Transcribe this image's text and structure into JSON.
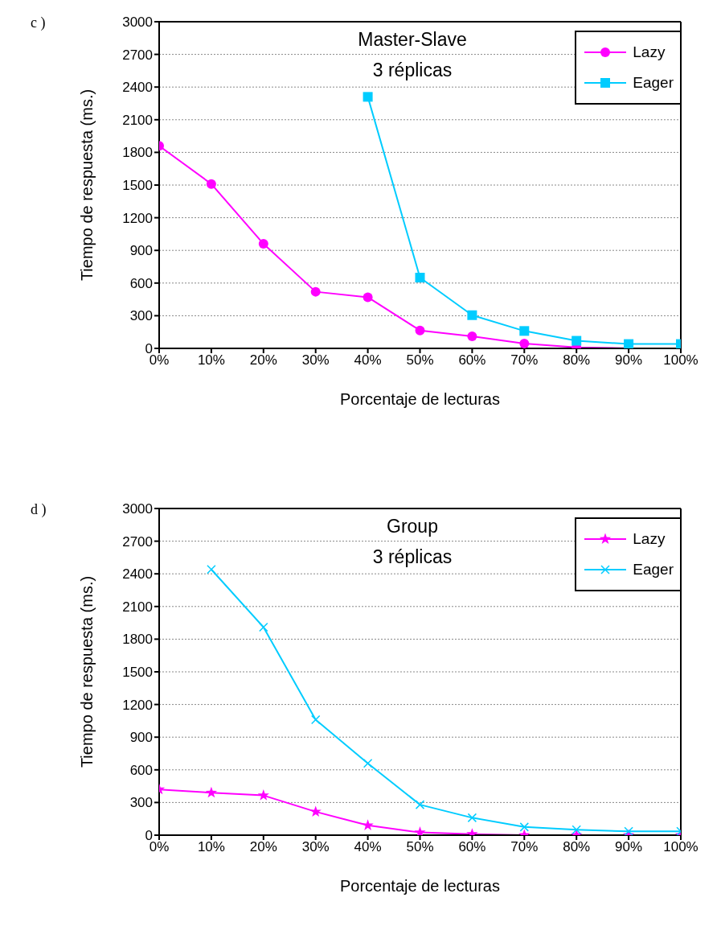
{
  "chart_data": [
    {
      "type": "line",
      "title": "Master-Slave",
      "subtitle": "3 réplicas",
      "annotations": [
        "c )"
      ],
      "xlabel": "Porcentaje de lecturas",
      "ylabel": "Tiempo de respuesta (ms.)",
      "categories": [
        "0%",
        "10%",
        "20%",
        "30%",
        "40%",
        "50%",
        "60%",
        "70%",
        "80%",
        "90%",
        "100%"
      ],
      "series": [
        {
          "name": "Lazy",
          "color": "#ff00ff",
          "marker": "circle",
          "values": [
            1860,
            1510,
            960,
            520,
            470,
            165,
            110,
            45,
            10,
            0,
            0
          ]
        },
        {
          "name": "Eager",
          "color": "#00ccff",
          "marker": "square",
          "values": [
            null,
            null,
            null,
            null,
            2310,
            650,
            305,
            160,
            70,
            40,
            40
          ]
        }
      ],
      "ylim": [
        0,
        3000
      ],
      "yticks": [
        0,
        300,
        600,
        900,
        1200,
        1500,
        1800,
        2100,
        2400,
        2700,
        3000
      ],
      "grid": "y",
      "legend": "top right"
    },
    {
      "type": "line",
      "title": "Group",
      "subtitle": "3 réplicas",
      "annotations": [
        "d )"
      ],
      "xlabel": "Porcentaje de lecturas",
      "ylabel": "Tiempo de respuesta (ms.)",
      "categories": [
        "0%",
        "10%",
        "20%",
        "30%",
        "40%",
        "50%",
        "60%",
        "70%",
        "80%",
        "90%",
        "100%"
      ],
      "series": [
        {
          "name": "Lazy",
          "color": "#ff00ff",
          "marker": "star",
          "values": [
            420,
            390,
            365,
            215,
            90,
            25,
            10,
            0,
            0,
            0,
            0
          ]
        },
        {
          "name": "Eager",
          "color": "#00ccff",
          "marker": "cross",
          "values": [
            null,
            2440,
            1910,
            1060,
            660,
            280,
            160,
            75,
            50,
            35,
            35
          ]
        }
      ],
      "ylim": [
        0,
        3000
      ],
      "yticks": [
        0,
        300,
        600,
        900,
        1200,
        1500,
        1800,
        2100,
        2400,
        2700,
        3000
      ],
      "grid": "y",
      "legend": "top right"
    }
  ]
}
